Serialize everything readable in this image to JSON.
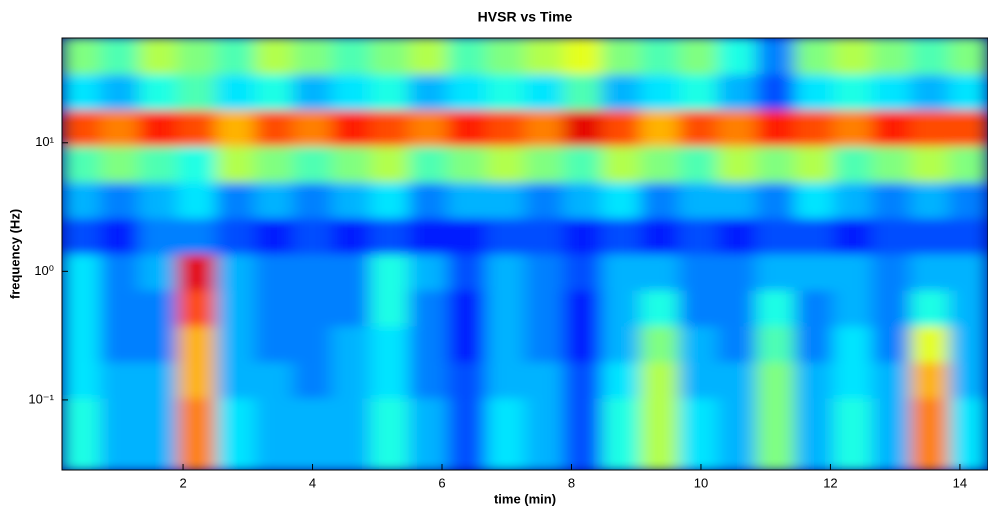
{
  "chart_data": {
    "type": "heatmap",
    "title": "HVSR vs Time",
    "x_label": "time (min)",
    "y_label": "frequency (Hz)",
    "colormap": "jet",
    "yscale": "log",
    "xlim": [
      0.13,
      14.434
    ],
    "ylim": [
      0.0285,
      65.3
    ],
    "xticks": [
      2,
      4,
      6,
      8,
      10,
      12,
      14
    ],
    "yticks": [
      {
        "value": 0.1,
        "label": "10⁻¹"
      },
      {
        "value": 1,
        "label": "10⁰"
      },
      {
        "value": 10,
        "label": "10¹"
      }
    ],
    "x_bins": [
      0.13,
      0.726,
      1.322,
      1.918,
      2.514,
      3.11,
      3.706,
      4.302,
      4.898,
      5.494,
      6.09,
      6.686,
      7.282,
      7.878,
      8.474,
      9.07,
      9.666,
      10.262,
      10.858,
      11.454,
      12.05,
      12.646,
      13.242,
      13.838,
      14.434
    ],
    "y_bins": [
      0.0285,
      0.0543,
      0.1035,
      0.197,
      0.376,
      0.716,
      1.365,
      2.6,
      4.95,
      9.44,
      18.0,
      34.3,
      65.3
    ],
    "values": [
      [
        0.4,
        0.3,
        0.3,
        0.75,
        0.35,
        0.3,
        0.3,
        0.3,
        0.4,
        0.3,
        0.2,
        0.35,
        0.3,
        0.2,
        0.4,
        0.55,
        0.35,
        0.3,
        0.5,
        0.3,
        0.4,
        0.3,
        0.75,
        0.35
      ],
      [
        0.4,
        0.3,
        0.3,
        0.75,
        0.35,
        0.3,
        0.3,
        0.3,
        0.4,
        0.3,
        0.2,
        0.35,
        0.3,
        0.2,
        0.4,
        0.55,
        0.35,
        0.3,
        0.5,
        0.3,
        0.4,
        0.3,
        0.75,
        0.35
      ],
      [
        0.35,
        0.3,
        0.3,
        0.7,
        0.3,
        0.3,
        0.25,
        0.3,
        0.35,
        0.25,
        0.2,
        0.3,
        0.3,
        0.2,
        0.35,
        0.55,
        0.3,
        0.3,
        0.5,
        0.3,
        0.35,
        0.3,
        0.7,
        0.3
      ],
      [
        0.35,
        0.25,
        0.25,
        0.7,
        0.3,
        0.25,
        0.25,
        0.3,
        0.35,
        0.25,
        0.15,
        0.3,
        0.25,
        0.15,
        0.3,
        0.5,
        0.3,
        0.25,
        0.45,
        0.25,
        0.35,
        0.25,
        0.6,
        0.3
      ],
      [
        0.35,
        0.25,
        0.25,
        0.8,
        0.3,
        0.25,
        0.25,
        0.25,
        0.4,
        0.25,
        0.15,
        0.3,
        0.25,
        0.15,
        0.3,
        0.4,
        0.25,
        0.25,
        0.4,
        0.25,
        0.3,
        0.25,
        0.4,
        0.3
      ],
      [
        0.35,
        0.25,
        0.3,
        0.9,
        0.3,
        0.25,
        0.25,
        0.25,
        0.4,
        0.3,
        0.2,
        0.3,
        0.25,
        0.2,
        0.3,
        0.3,
        0.25,
        0.25,
        0.3,
        0.3,
        0.3,
        0.25,
        0.3,
        0.3
      ],
      [
        0.2,
        0.15,
        0.25,
        0.25,
        0.2,
        0.15,
        0.2,
        0.15,
        0.2,
        0.15,
        0.15,
        0.2,
        0.2,
        0.15,
        0.2,
        0.15,
        0.2,
        0.15,
        0.2,
        0.2,
        0.15,
        0.2,
        0.2,
        0.2
      ],
      [
        0.3,
        0.25,
        0.3,
        0.35,
        0.25,
        0.3,
        0.25,
        0.3,
        0.35,
        0.25,
        0.3,
        0.3,
        0.25,
        0.3,
        0.35,
        0.25,
        0.3,
        0.3,
        0.25,
        0.35,
        0.3,
        0.25,
        0.3,
        0.25
      ],
      [
        0.45,
        0.5,
        0.45,
        0.4,
        0.55,
        0.5,
        0.45,
        0.5,
        0.55,
        0.45,
        0.5,
        0.55,
        0.5,
        0.45,
        0.55,
        0.5,
        0.45,
        0.55,
        0.5,
        0.55,
        0.45,
        0.5,
        0.55,
        0.5
      ],
      [
        0.8,
        0.75,
        0.85,
        0.8,
        0.7,
        0.8,
        0.75,
        0.85,
        0.8,
        0.75,
        0.85,
        0.8,
        0.75,
        0.9,
        0.8,
        0.7,
        0.8,
        0.75,
        0.85,
        0.8,
        0.75,
        0.85,
        0.8,
        0.8
      ],
      [
        0.35,
        0.3,
        0.4,
        0.45,
        0.35,
        0.4,
        0.3,
        0.35,
        0.4,
        0.3,
        0.35,
        0.4,
        0.35,
        0.45,
        0.3,
        0.35,
        0.4,
        0.3,
        0.2,
        0.35,
        0.4,
        0.35,
        0.3,
        0.35
      ],
      [
        0.5,
        0.45,
        0.55,
        0.5,
        0.45,
        0.55,
        0.5,
        0.45,
        0.5,
        0.55,
        0.45,
        0.5,
        0.55,
        0.6,
        0.5,
        0.45,
        0.5,
        0.4,
        0.25,
        0.5,
        0.55,
        0.5,
        0.45,
        0.5
      ]
    ]
  }
}
